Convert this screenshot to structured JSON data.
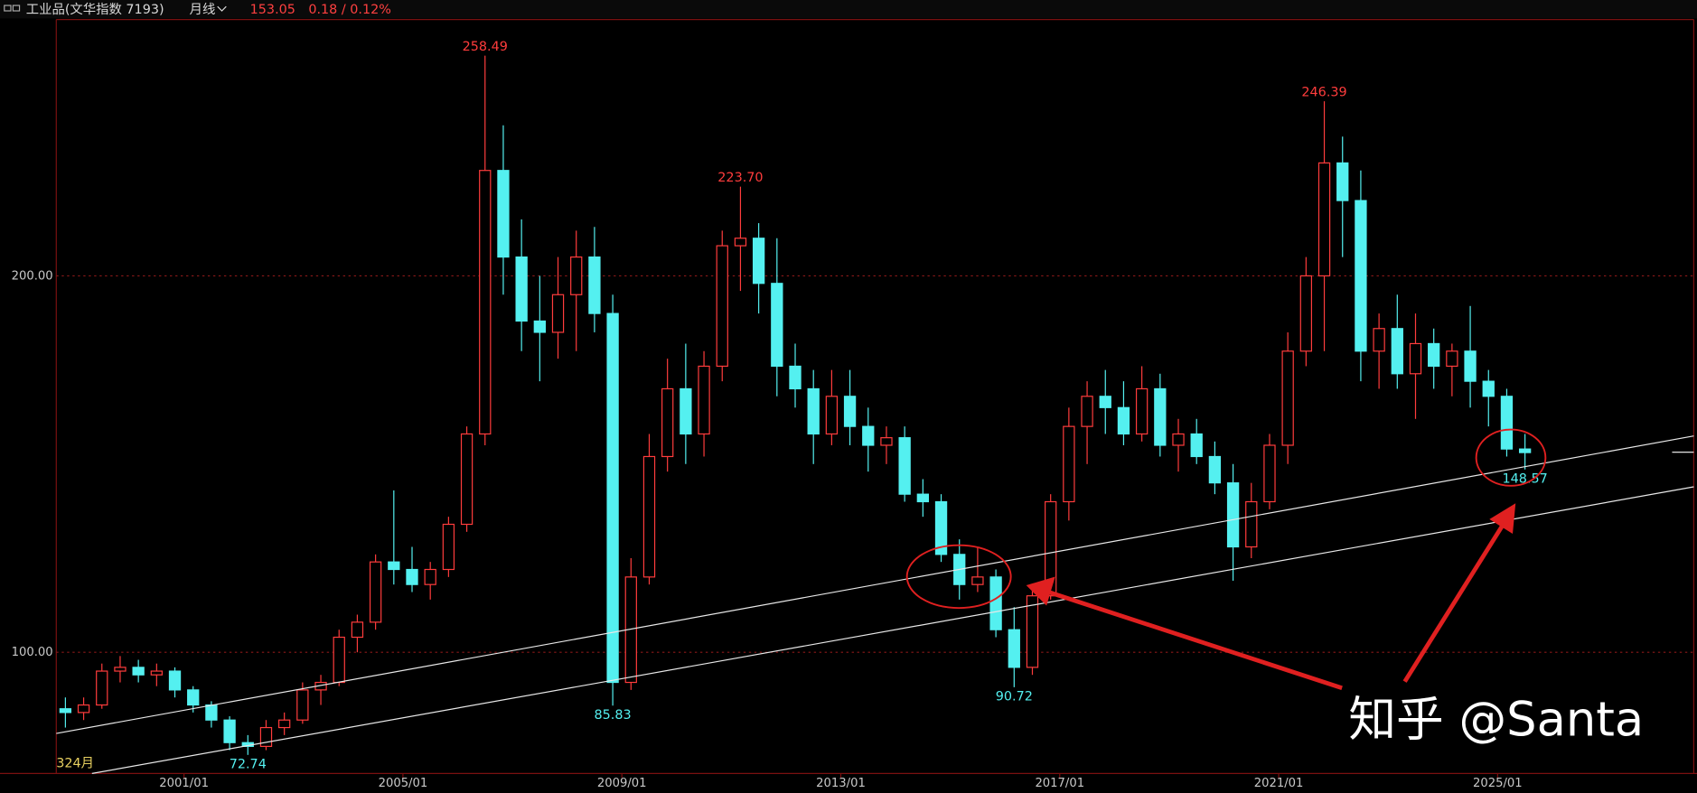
{
  "chart_data": {
    "type": "candlestick",
    "header": {
      "title": "工业品(文华指数 7193)",
      "period": "月线",
      "price": 153.05,
      "change": "0.18 / 0.12%"
    },
    "bar_count_label": "324月",
    "watermark": "知乎 @Santa",
    "up_color": "#ff3c3c",
    "down_color": "#54f0f0",
    "grid": true,
    "xlim": [
      "1998/09",
      "2028/08"
    ],
    "xticks": [
      "2001/01",
      "2005/01",
      "2009/01",
      "2013/01",
      "2017/01",
      "2021/01",
      "2025/01"
    ],
    "ylim": [
      67.8,
      268.1
    ],
    "yticks": [
      {
        "value": 100,
        "label": "100.00"
      },
      {
        "value": 200,
        "label": "200.00"
      }
    ],
    "x": [
      "1998/09",
      "1999/01",
      "1999/05",
      "1999/09",
      "2000/01",
      "2000/05",
      "2000/09",
      "2001/01",
      "2001/05",
      "2001/09",
      "2002/01",
      "2002/05",
      "2002/09",
      "2003/01",
      "2003/05",
      "2003/09",
      "2004/01",
      "2004/05",
      "2004/09",
      "2005/01",
      "2005/05",
      "2005/09",
      "2006/01",
      "2006/05",
      "2006/09",
      "2007/01",
      "2007/05",
      "2007/09",
      "2008/01",
      "2008/05",
      "2008/09",
      "2009/01",
      "2009/05",
      "2009/09",
      "2010/01",
      "2010/05",
      "2010/09",
      "2011/01",
      "2011/05",
      "2011/09",
      "2012/01",
      "2012/05",
      "2012/09",
      "2013/01",
      "2013/05",
      "2013/09",
      "2014/01",
      "2014/05",
      "2014/09",
      "2015/01",
      "2015/05",
      "2015/09",
      "2016/01",
      "2016/05",
      "2016/09",
      "2017/01",
      "2017/05",
      "2017/09",
      "2018/01",
      "2018/05",
      "2018/09",
      "2019/01",
      "2019/05",
      "2019/09",
      "2020/01",
      "2020/05",
      "2020/09",
      "2021/01",
      "2021/05",
      "2021/09",
      "2022/01",
      "2022/05",
      "2022/09",
      "2023/01",
      "2023/05",
      "2023/09",
      "2024/01",
      "2024/05",
      "2024/09",
      "2025/01",
      "2025/05"
    ],
    "open": [
      85,
      84,
      86,
      95,
      96,
      94,
      95,
      90,
      86,
      82,
      76,
      75,
      80,
      82,
      90,
      92,
      104,
      108,
      124,
      122,
      118,
      122,
      134,
      158,
      228,
      205,
      188,
      185,
      195,
      205,
      190,
      92,
      120,
      152,
      170,
      158,
      176,
      208,
      210,
      198,
      176,
      170,
      158,
      168,
      160,
      155,
      157,
      142,
      140,
      126,
      118,
      120,
      106,
      96,
      115,
      140,
      160,
      168,
      165,
      158,
      170,
      155,
      158,
      152,
      145,
      128,
      140,
      155,
      180,
      200,
      230,
      220,
      180,
      186,
      174,
      182,
      176,
      180,
      172,
      168,
      154
    ],
    "high": [
      88,
      88,
      97,
      99,
      98,
      97,
      96,
      91,
      87,
      83,
      78,
      82,
      84,
      92,
      94,
      106,
      110,
      126,
      143,
      128,
      124,
      136,
      160,
      258.49,
      240,
      215,
      200,
      205,
      212,
      213,
      195,
      125,
      158,
      178,
      182,
      180,
      212,
      223.7,
      214,
      210,
      182,
      175,
      175,
      175,
      165,
      160,
      160,
      146,
      142,
      130,
      128,
      122,
      112,
      118,
      142,
      165,
      172,
      175,
      172,
      176,
      174,
      162,
      162,
      156,
      150,
      145,
      158,
      185,
      205,
      246.39,
      237,
      228,
      190,
      195,
      190,
      186,
      182,
      192,
      175,
      170,
      158
    ],
    "low": [
      80,
      82,
      85,
      92,
      92,
      91,
      88,
      84,
      80,
      74,
      72.74,
      74,
      78,
      81,
      86,
      91,
      100,
      106,
      118,
      116,
      114,
      120,
      132,
      155,
      195,
      180,
      172,
      178,
      180,
      185,
      85.83,
      90,
      118,
      148,
      150,
      152,
      172,
      196,
      190,
      168,
      165,
      150,
      155,
      155,
      148,
      150,
      140,
      136,
      124,
      114,
      116,
      104,
      90.72,
      94,
      114,
      135,
      150,
      158,
      155,
      156,
      152,
      148,
      150,
      142,
      119,
      125,
      138,
      150,
      176,
      180,
      205,
      172,
      170,
      170,
      162,
      170,
      168,
      165,
      160,
      152,
      148.57
    ],
    "close": [
      84,
      86,
      95,
      96,
      94,
      95,
      90,
      86,
      82,
      76,
      75,
      80,
      82,
      90,
      92,
      104,
      108,
      124,
      122,
      118,
      122,
      134,
      158,
      228,
      205,
      188,
      185,
      195,
      205,
      190,
      92,
      120,
      152,
      170,
      158,
      176,
      208,
      210,
      198,
      176,
      170,
      158,
      168,
      160,
      155,
      157,
      142,
      140,
      126,
      118,
      120,
      106,
      96,
      115,
      140,
      160,
      168,
      165,
      158,
      170,
      155,
      158,
      152,
      145,
      128,
      140,
      155,
      180,
      200,
      230,
      220,
      180,
      186,
      174,
      182,
      176,
      180,
      172,
      168,
      154,
      153.05
    ],
    "extremes": [
      {
        "x": "2006/05",
        "value": 258.49,
        "label": "258.49",
        "kind": "high"
      },
      {
        "x": "2011/01",
        "value": 223.7,
        "label": "223.70",
        "kind": "high"
      },
      {
        "x": "2021/09",
        "value": 246.39,
        "label": "246.39",
        "kind": "high"
      },
      {
        "x": "2002/01",
        "value": 72.74,
        "label": "72.74",
        "kind": "low"
      },
      {
        "x": "2008/09",
        "value": 85.83,
        "label": "85.83",
        "kind": "low"
      },
      {
        "x": "2016/01",
        "value": 90.72,
        "label": "90.72",
        "kind": "low"
      },
      {
        "x": "2025/05",
        "value": 148.57,
        "label": "148.57",
        "kind": "low"
      }
    ]
  }
}
